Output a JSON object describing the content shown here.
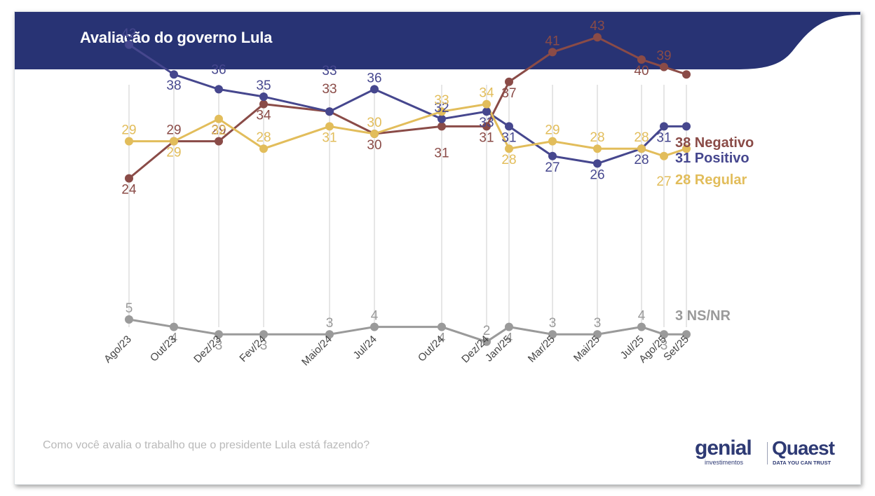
{
  "slide": {
    "title": "Avaliação do governo Lula",
    "question": "Como você avalia o trabalho que o presidente Lula está fazendo?",
    "logos": {
      "genial": "genial",
      "genial_sub": "investimentos",
      "quaest": "Quaest",
      "quaest_sub": "DATA YOU CAN TRUST"
    },
    "header_color": "#283374"
  },
  "chart_data": {
    "type": "line",
    "title": "Avaliação do governo Lula",
    "xlabel": "",
    "ylabel": "",
    "grid": "vertical",
    "legend": "right-end-labels",
    "categories": [
      "Ago/23",
      "Out/23",
      "Dez/23",
      "Fev/24",
      "Maio/24",
      "Jul/24",
      "Out/24",
      "Dez/24",
      "Jan/25",
      "Mar/25",
      "Mai/25",
      "Jul/25",
      "Ago/25",
      "Set/25"
    ],
    "series": [
      {
        "name": "Negativo",
        "end_label": "38 Negativo",
        "color": "#8a4b47",
        "values": [
          24,
          29,
          29,
          34,
          33,
          30,
          31,
          31,
          37,
          41,
          43,
          40,
          39,
          38
        ]
      },
      {
        "name": "Positivo",
        "end_label": "31 Positivo",
        "color": "#46478e",
        "values": [
          42,
          38,
          36,
          35,
          33,
          36,
          32,
          33,
          31,
          27,
          26,
          28,
          31,
          31
        ]
      },
      {
        "name": "Regular",
        "end_label": "28 Regular",
        "color": "#e2bd5b",
        "values": [
          29,
          29,
          32,
          28,
          31,
          30,
          33,
          34,
          28,
          29,
          28,
          28,
          27,
          28
        ]
      },
      {
        "name": "NS/NR",
        "end_label": "3 NS/NR",
        "color": "#9a9a9a",
        "values": [
          5,
          4,
          3,
          3,
          3,
          4,
          4,
          2,
          4,
          3,
          3,
          4,
          3,
          3
        ]
      }
    ]
  }
}
